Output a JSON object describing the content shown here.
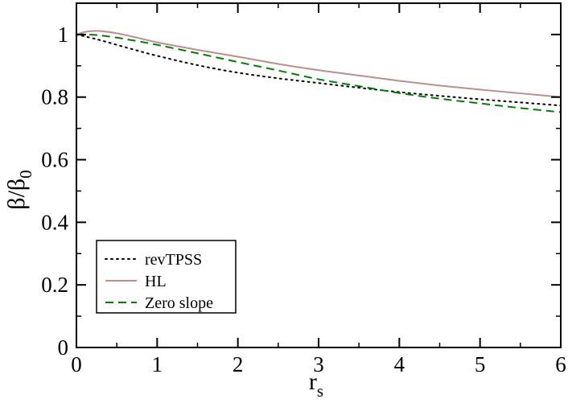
{
  "chart_data": {
    "type": "line",
    "title": "",
    "xlabel": "r",
    "xlabel_sub": "s",
    "ylabel": "β/β",
    "ylabel_sub": "0",
    "xlim": [
      0,
      6
    ],
    "ylim": [
      0,
      1.1
    ],
    "xticks": [
      0,
      1,
      2,
      3,
      4,
      5,
      6
    ],
    "xtick_labels": [
      "0",
      "1",
      "2",
      "3",
      "4",
      "5",
      "6"
    ],
    "yticks": [
      0,
      0.2,
      0.4,
      0.6,
      0.8,
      1.0
    ],
    "ytick_labels": [
      "0",
      "0.2",
      "0.4",
      "0.6",
      "0.8",
      "1"
    ],
    "grid": false,
    "legend_position": "bottom-left",
    "series": [
      {
        "name": "revTPSS",
        "color": "#000000",
        "style": "dotted",
        "x": [
          0,
          0.25,
          0.5,
          0.75,
          1.0,
          1.5,
          2.0,
          2.5,
          3.0,
          3.5,
          4.0,
          4.5,
          5.0,
          5.5,
          6.0
        ],
        "y": [
          1.0,
          0.985,
          0.967,
          0.949,
          0.932,
          0.902,
          0.878,
          0.86,
          0.845,
          0.83,
          0.816,
          0.804,
          0.793,
          0.783,
          0.773
        ]
      },
      {
        "name": "HL",
        "color": "#bc8f8f",
        "style": "solid",
        "x": [
          0,
          0.1,
          0.2,
          0.3,
          0.5,
          0.75,
          1.0,
          1.5,
          2.0,
          2.5,
          3.0,
          3.5,
          4.0,
          4.5,
          5.0,
          5.5,
          6.0
        ],
        "y": [
          1.0,
          1.008,
          1.011,
          1.011,
          1.004,
          0.99,
          0.975,
          0.951,
          0.929,
          0.906,
          0.886,
          0.869,
          0.852,
          0.837,
          0.824,
          0.812,
          0.8
        ]
      },
      {
        "name": "Zero slope",
        "color": "#008000",
        "style": "dashed",
        "x": [
          0,
          0.1,
          0.2,
          0.3,
          0.5,
          0.75,
          1.0,
          1.5,
          2.0,
          2.5,
          3.0,
          3.5,
          4.0,
          4.5,
          5.0,
          5.5,
          6.0
        ],
        "y": [
          1.0,
          1.0,
          0.999,
          0.997,
          0.99,
          0.979,
          0.967,
          0.94,
          0.912,
          0.885,
          0.857,
          0.835,
          0.813,
          0.795,
          0.78,
          0.765,
          0.752
        ]
      }
    ]
  }
}
